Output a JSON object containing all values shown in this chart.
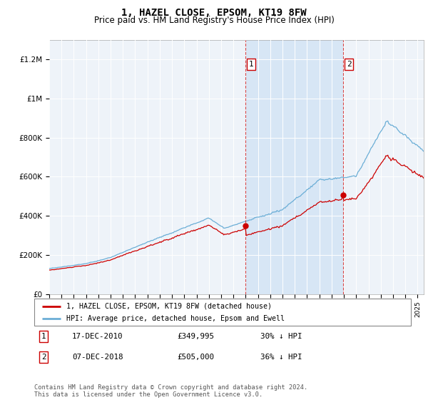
{
  "title": "1, HAZEL CLOSE, EPSOM, KT19 8FW",
  "subtitle": "Price paid vs. HM Land Registry's House Price Index (HPI)",
  "ylabel_ticks": [
    "£0",
    "£200K",
    "£400K",
    "£600K",
    "£800K",
    "£1M",
    "£1.2M"
  ],
  "ytick_values": [
    0,
    200000,
    400000,
    600000,
    800000,
    1000000,
    1200000
  ],
  "ylim": [
    0,
    1300000
  ],
  "xlim_start": 1995.0,
  "xlim_end": 2025.5,
  "hpi_color": "#6baed6",
  "hpi_fill_color": "#ddeaf5",
  "price_color": "#cc0000",
  "vline_color": "#cc0000",
  "bg_color": "#eef3f9",
  "shade_color": "#d5e5f5",
  "purchase1_x": 2010.96,
  "purchase1_y": 349995,
  "purchase1_label": "1",
  "purchase2_x": 2018.92,
  "purchase2_y": 505000,
  "purchase2_label": "2",
  "legend_line1": "1, HAZEL CLOSE, EPSOM, KT19 8FW (detached house)",
  "legend_line2": "HPI: Average price, detached house, Epsom and Ewell",
  "table_row1": [
    "1",
    "17-DEC-2010",
    "£349,995",
    "30% ↓ HPI"
  ],
  "table_row2": [
    "2",
    "07-DEC-2018",
    "£505,000",
    "36% ↓ HPI"
  ],
  "footnote": "Contains HM Land Registry data © Crown copyright and database right 2024.\nThis data is licensed under the Open Government Licence v3.0.",
  "title_fontsize": 10,
  "subtitle_fontsize": 8.5
}
